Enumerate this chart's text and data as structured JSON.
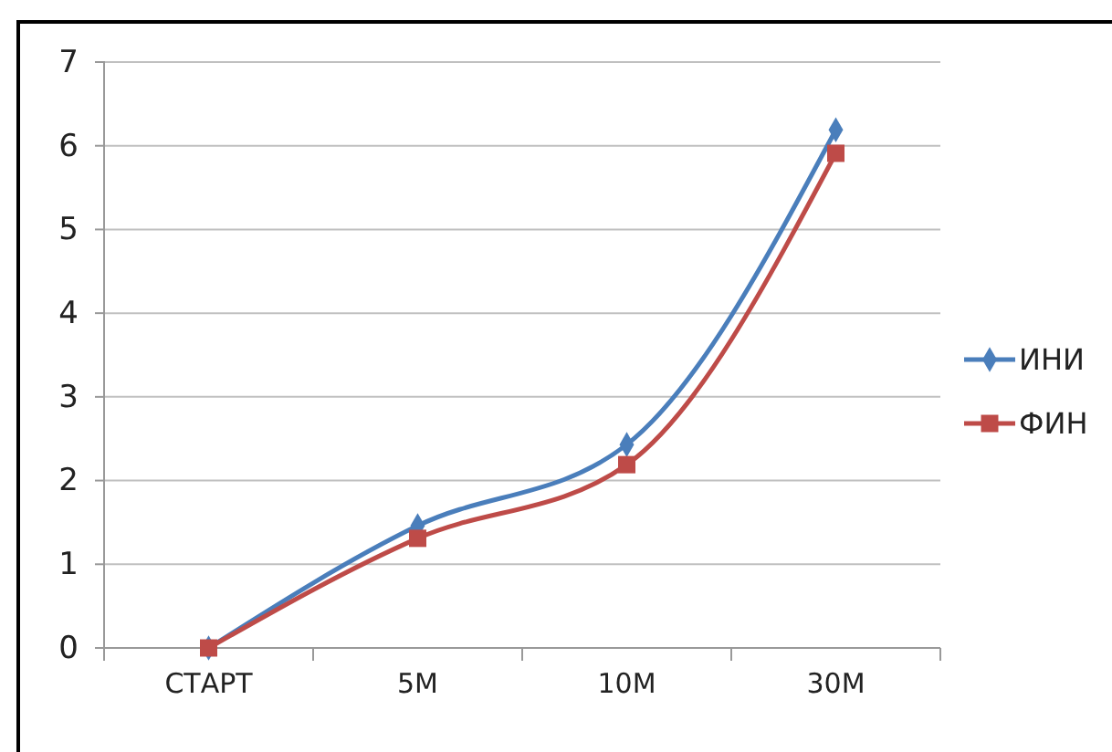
{
  "chart_data": {
    "type": "line",
    "categories": [
      "СТАРТ",
      "5M",
      "10M",
      "30M"
    ],
    "series": [
      {
        "name": "ИНИ",
        "color": "#4a7ebb",
        "marker": "diamond",
        "values": [
          0,
          1.46,
          2.43,
          6.19
        ]
      },
      {
        "name": "ФИН",
        "color": "#be4b48",
        "marker": "square",
        "values": [
          0,
          1.31,
          2.19,
          5.91
        ]
      }
    ],
    "ylim": [
      0,
      7
    ],
    "yticks": [
      0,
      1,
      2,
      3,
      4,
      5,
      6,
      7
    ],
    "grid": "y",
    "legend": "right"
  }
}
